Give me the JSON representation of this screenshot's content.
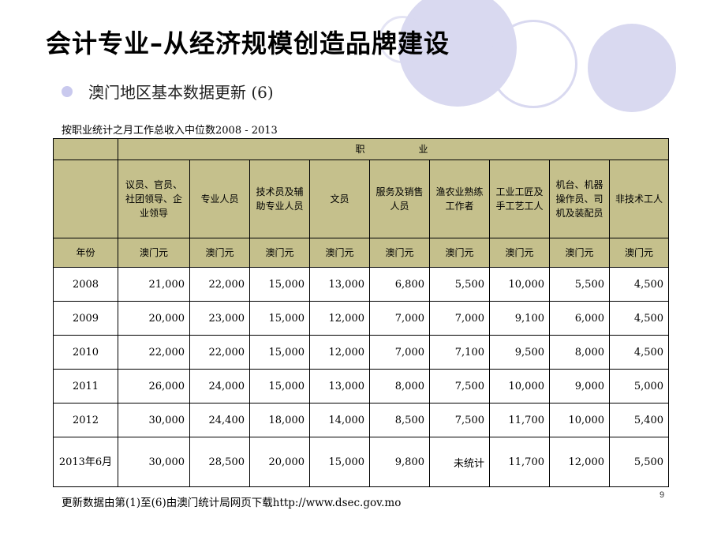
{
  "slide": {
    "title": "会计专业–从经济规模创造品牌建设",
    "subtitle": "澳门地区基本数据更新 (6)",
    "caption": "按职业统计之月工作总收入中位数2008 - 2013",
    "footer": "更新数据由第(1)至(6)由澳门统计局网页下载http://www.dsec.gov.mo",
    "page_number": "9",
    "accent_circle_color": "#d9d9f0",
    "table_header_color": "#c5c08c"
  },
  "table": {
    "group_header": "职　　　　业",
    "year_header": "年份",
    "columns": [
      "议员、官员、社团领导、企业领导",
      "专业人员",
      "技术员及辅助专业人员",
      "文员",
      "服务及销售人员",
      "渔农业熟练工作者",
      "工业工匠及手工艺工人",
      "机台、机器操作员、司机及装配员",
      "非技术工人"
    ],
    "unit": "澳门元",
    "rows": [
      {
        "year": "2008",
        "values": [
          "21,000",
          "22,000",
          "15,000",
          "13,000",
          "6,800",
          "5,500",
          "10,000",
          "5,500",
          "4,500"
        ]
      },
      {
        "year": "2009",
        "values": [
          "20,000",
          "23,000",
          "15,000",
          "12,000",
          "7,000",
          "7,000",
          "9,100",
          "6,000",
          "4,500"
        ]
      },
      {
        "year": "2010",
        "values": [
          "22,000",
          "22,000",
          "15,000",
          "12,000",
          "7,000",
          "7,100",
          "9,500",
          "8,000",
          "4,500"
        ]
      },
      {
        "year": "2011",
        "values": [
          "26,000",
          "24,000",
          "15,000",
          "13,000",
          "8,000",
          "7,500",
          "10,000",
          "9,000",
          "5,000"
        ]
      },
      {
        "year": "2012",
        "values": [
          "30,000",
          "24,400",
          "18,000",
          "14,000",
          "8,500",
          "7,500",
          "11,700",
          "10,000",
          "5,400"
        ]
      },
      {
        "year": "2013年6月",
        "values": [
          "30,000",
          "28,500",
          "20,000",
          "15,000",
          "9,800",
          "未统计",
          "11,700",
          "12,000",
          "5,500"
        ]
      }
    ]
  }
}
